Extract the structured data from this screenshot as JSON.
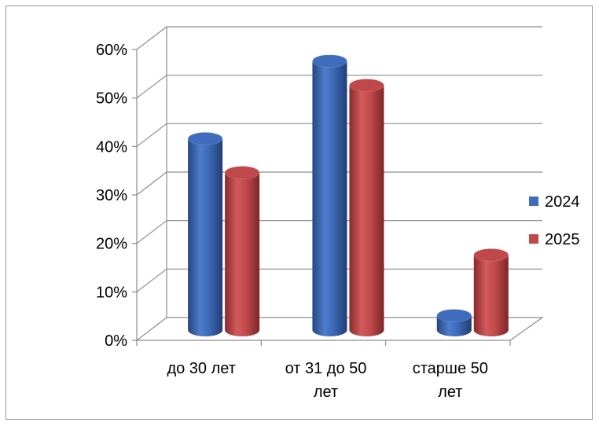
{
  "chart_data": {
    "type": "bar",
    "subtype": "3d-cylinder",
    "title": "",
    "xlabel": "",
    "ylabel": "",
    "categories": [
      [
        "до 30 лет"
      ],
      [
        "от 31 до 50",
        "лет"
      ],
      [
        "старше 50",
        "лет"
      ]
    ],
    "series": [
      {
        "name": "2024",
        "values": [
          39.5,
          55.5,
          3
        ],
        "color": "#3F6DBC"
      },
      {
        "name": "2025",
        "values": [
          32.5,
          50.5,
          15.5
        ],
        "color": "#C0474A"
      }
    ],
    "ylim": [
      0,
      60
    ],
    "yticks": [
      "0%",
      "10%",
      "20%",
      "30%",
      "40%",
      "50%",
      "60%"
    ],
    "grid": true,
    "legend_position": "right"
  }
}
